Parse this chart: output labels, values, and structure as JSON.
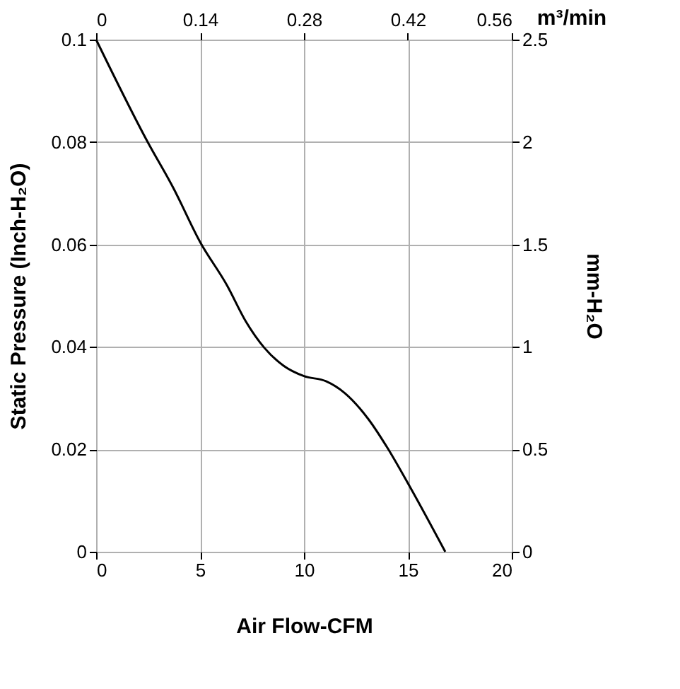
{
  "chart_data": {
    "type": "line",
    "xlabel": "Air Flow-CFM",
    "ylabel": "Static Pressure (Inch-H₂O)",
    "y2label": "mm-H₂O",
    "x2label": "m³/min",
    "series": [
      {
        "color": "#000000",
        "x": [
          0,
          2.48,
          3.72,
          5,
          6.3,
          7.2,
          8.1,
          9.03,
          10,
          11.06,
          11.96,
          13.1,
          14,
          15,
          16.8
        ],
        "values": [
          0.1,
          0.08,
          0.071,
          0.0605,
          0.052,
          0.045,
          0.0398,
          0.0363,
          0.0343,
          0.0333,
          0.031,
          0.0259,
          0.0204,
          0.0134,
          0
        ]
      }
    ],
    "xlim": [
      0,
      20
    ],
    "xticks": [
      0,
      5,
      10,
      15,
      20
    ],
    "ylim": [
      0,
      0.1
    ],
    "yticks": [
      0,
      0.02,
      0.04,
      0.06,
      0.08,
      0.1
    ],
    "x2lim": [
      0,
      0.56
    ],
    "x2ticks": [
      0,
      0.14,
      0.28,
      0.42,
      0.56
    ],
    "y2lim": [
      0,
      2.5
    ],
    "y2ticks": [
      0,
      0.5,
      1,
      1.5,
      2,
      2.5
    ],
    "grid": true,
    "marker": "none",
    "line_style": "solid"
  }
}
